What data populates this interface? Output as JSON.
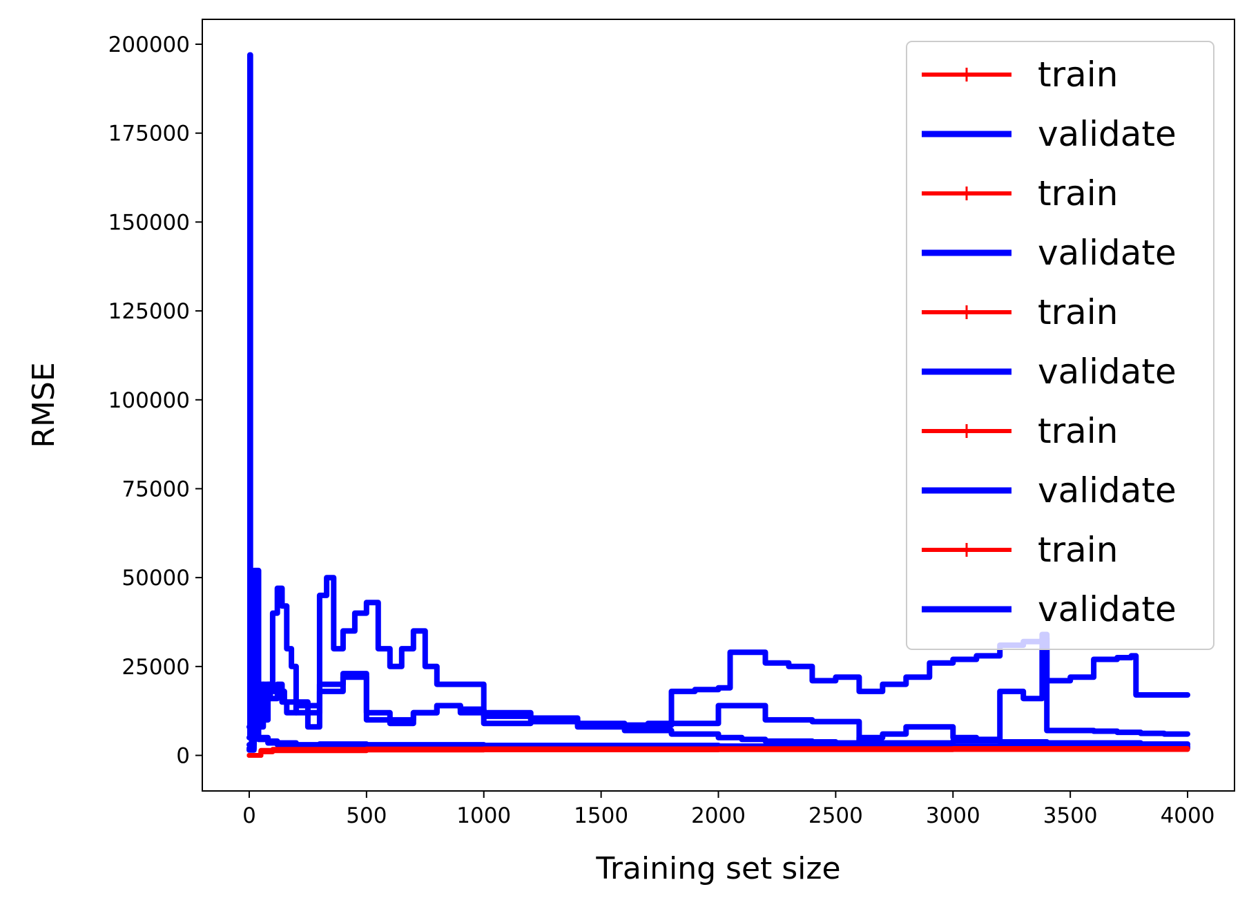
{
  "chart_data": {
    "type": "line",
    "title": "",
    "xlabel": "Training set size",
    "ylabel": "RMSE",
    "xlim": [
      -200,
      4200
    ],
    "ylim": [
      -10000,
      207000
    ],
    "x_ticks": [
      0,
      500,
      1000,
      1500,
      2000,
      2500,
      3000,
      3500,
      4000
    ],
    "x_tick_labels": [
      "0",
      "500",
      "1000",
      "1500",
      "2000",
      "2500",
      "3000",
      "3500",
      "4000"
    ],
    "y_ticks": [
      0,
      25000,
      50000,
      75000,
      100000,
      125000,
      150000,
      175000,
      200000
    ],
    "y_tick_labels": [
      "0",
      "25000",
      "50000",
      "75000",
      "100000",
      "125000",
      "150000",
      "175000",
      "200000"
    ],
    "grid": false,
    "legend_position": "upper-right",
    "colors": {
      "train": "#ff0000",
      "validate": "#0000ff"
    },
    "series": [
      {
        "name": "train",
        "style": "red-plus-line",
        "x": [
          0,
          50,
          100,
          500,
          1000,
          2000,
          3000,
          4000
        ],
        "values": [
          0,
          1200,
          1500,
          1600,
          1600,
          1650,
          1700,
          1700
        ]
      },
      {
        "name": "validate",
        "style": "blue-thick-line",
        "x": [
          0,
          3,
          5,
          8,
          10,
          20,
          30,
          40,
          60,
          90,
          120,
          140,
          160,
          200,
          300,
          400,
          500,
          600,
          700,
          800,
          900,
          1000,
          1200,
          1400,
          1600,
          1800,
          2000,
          2200,
          2400,
          2600,
          2800,
          3000,
          3200,
          3400,
          3600,
          3800,
          4000
        ],
        "values": [
          5000,
          197000,
          20000,
          8000,
          3000,
          20000,
          22000,
          20000,
          18000,
          16000,
          20000,
          15000,
          12000,
          14000,
          18000,
          22000,
          12000,
          10000,
          12000,
          14000,
          12000,
          9000,
          9500,
          8500,
          8500,
          9000,
          14000,
          10000,
          9500,
          3500,
          3500,
          4000,
          3800,
          3500,
          3500,
          3200,
          3000
        ]
      },
      {
        "name": "train",
        "style": "red-plus-line",
        "x": [
          0,
          50,
          100,
          500,
          1000,
          2000,
          3000,
          4000
        ],
        "values": [
          0,
          1100,
          1400,
          1550,
          1600,
          1650,
          1700,
          1700
        ]
      },
      {
        "name": "validate",
        "style": "blue-thick-line",
        "x": [
          0,
          10,
          20,
          40,
          60,
          80,
          100,
          120,
          140,
          160,
          180,
          200,
          250,
          300,
          330,
          360,
          400,
          450,
          500,
          550,
          600,
          650,
          700,
          750,
          800,
          900,
          1000,
          1200,
          1400,
          1600,
          1800,
          2000,
          2100,
          2200,
          2400,
          2500,
          2600,
          2700,
          2800,
          3000,
          3100,
          3200,
          3300,
          3380,
          3400,
          3500,
          3600,
          3700,
          3800,
          3900,
          4000
        ],
        "values": [
          8000,
          40000,
          25000,
          12000,
          10000,
          20000,
          40000,
          47000,
          42000,
          30000,
          25000,
          15000,
          8000,
          45000,
          50000,
          30000,
          35000,
          40000,
          43000,
          30000,
          25000,
          30000,
          35000,
          25000,
          20000,
          20000,
          12000,
          10000,
          8000,
          7000,
          6000,
          5000,
          4500,
          4000,
          3800,
          3500,
          5000,
          6000,
          8000,
          5000,
          4500,
          18000,
          16000,
          34000,
          7000,
          7000,
          6800,
          6500,
          6200,
          6000,
          6000
        ]
      },
      {
        "name": "train",
        "style": "red-plus-line",
        "x": [
          0,
          50,
          100,
          500,
          1000,
          2000,
          3000,
          4000
        ],
        "values": [
          0,
          1000,
          1300,
          1500,
          1550,
          1600,
          1650,
          1650
        ]
      },
      {
        "name": "validate",
        "style": "blue-thick-line",
        "x": [
          0,
          20,
          40,
          60,
          100,
          150,
          200,
          300,
          400,
          500,
          600,
          700,
          800,
          900,
          1000,
          1200,
          1400,
          1600,
          1700,
          1800,
          1900,
          2000,
          2050,
          2200,
          2300,
          2400,
          2500,
          2600,
          2700,
          2800,
          2900,
          3000,
          3100,
          3200,
          3300,
          3380,
          3400,
          3500,
          3600,
          3700,
          3760,
          3780,
          3900,
          4000
        ],
        "values": [
          3000,
          52000,
          8000,
          20000,
          18000,
          15000,
          12000,
          20000,
          23000,
          10000,
          9000,
          12000,
          14000,
          13000,
          11000,
          10500,
          9000,
          8500,
          9000,
          18000,
          18500,
          19000,
          29000,
          26000,
          25000,
          21000,
          22000,
          18000,
          20000,
          22000,
          26000,
          27000,
          28000,
          31000,
          32000,
          33000,
          21000,
          22000,
          27000,
          27500,
          28000,
          17000,
          17000,
          17000
        ]
      },
      {
        "name": "train",
        "style": "red-plus-line",
        "x": [
          0,
          50,
          100,
          500,
          1000,
          2000,
          3000,
          4000
        ],
        "values": [
          0,
          1300,
          1600,
          1700,
          1750,
          1800,
          1800,
          1850
        ]
      },
      {
        "name": "validate",
        "style": "blue-thick-line",
        "x": [
          0,
          20,
          40,
          80,
          120,
          200,
          300,
          500,
          1000,
          2000,
          3000,
          4000
        ],
        "values": [
          2000,
          8000,
          5000,
          4000,
          3500,
          3000,
          3200,
          3000,
          2800,
          2600,
          2500,
          2400
        ]
      },
      {
        "name": "train",
        "style": "red-plus-line",
        "x": [
          0,
          50,
          100,
          500,
          1000,
          2000,
          3000,
          4000
        ],
        "values": [
          0,
          1400,
          1700,
          1800,
          1850,
          1900,
          1950,
          1950
        ]
      },
      {
        "name": "validate",
        "style": "blue-thick-line",
        "x": [
          0,
          20,
          40,
          80,
          120,
          200,
          300,
          500,
          1000,
          2000,
          3000,
          4000
        ],
        "values": [
          1500,
          6000,
          4500,
          3500,
          3000,
          2800,
          2600,
          2500,
          2300,
          2200,
          2100,
          2000
        ]
      }
    ]
  }
}
